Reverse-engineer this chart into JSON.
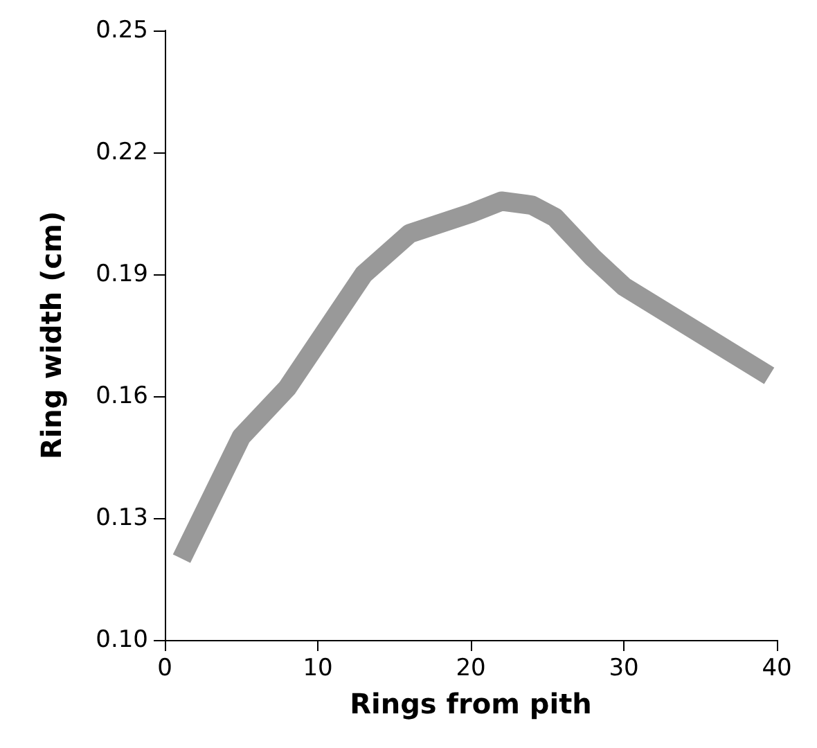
{
  "chart_data": {
    "type": "line",
    "xlabel": "Rings from pith",
    "ylabel": "Ring width (cm)",
    "x": [
      1.1,
      5,
      8,
      13,
      16,
      20,
      22,
      24,
      25.5,
      28,
      30,
      39.5
    ],
    "series": [
      {
        "color": "#999999",
        "values": [
          0.12,
          0.15,
          0.162,
          0.19,
          0.2,
          0.205,
          0.208,
          0.207,
          0.204,
          0.194,
          0.187,
          0.165
        ]
      }
    ],
    "xlim": [
      0,
      40
    ],
    "xticks": [
      0,
      10,
      20,
      30,
      40
    ],
    "ylim": [
      0.1,
      0.25
    ],
    "yticks": [
      {
        "value": 0.1,
        "label": "0.10"
      },
      {
        "value": 0.13,
        "label": "0.13"
      },
      {
        "value": 0.16,
        "label": "0.16"
      },
      {
        "value": 0.19,
        "label": "0.19"
      },
      {
        "value": 0.22,
        "label": "0.22"
      },
      {
        "value": 0.25,
        "label": "0.25"
      }
    ],
    "grid": false,
    "marker": "none",
    "line_style": "solid"
  }
}
